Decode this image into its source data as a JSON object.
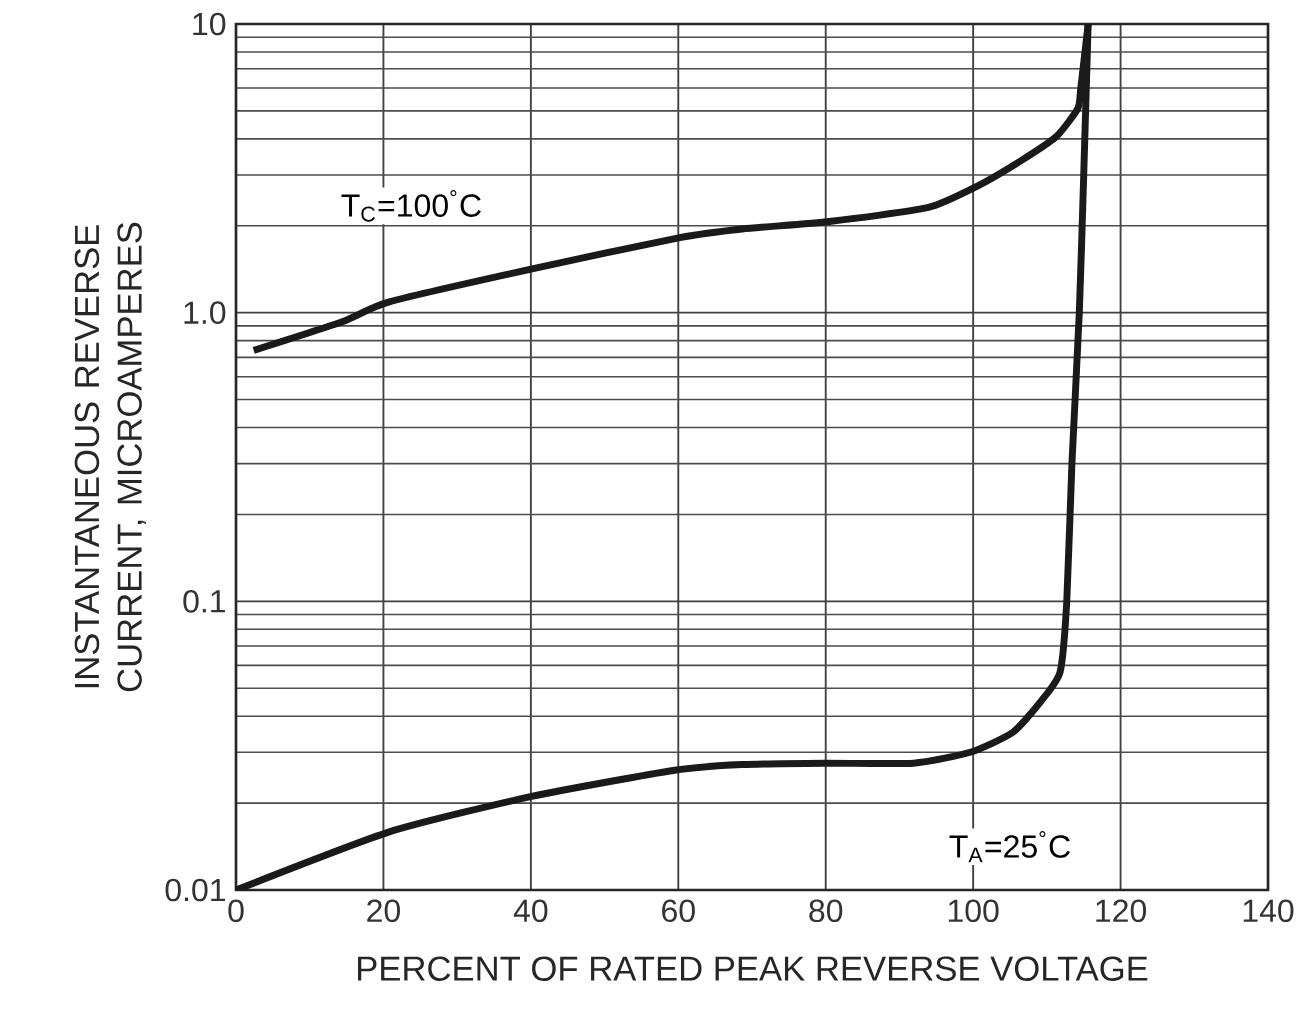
{
  "chart_data": {
    "type": "line",
    "xlabel": "PERCENT OF RATED PEAK REVERSE VOLTAGE",
    "ylabel": "INSTANTANEOUS REVERSE CURRENT, MICROAMPERES",
    "log": "y",
    "grid": true,
    "marker": "none",
    "line_style": "solid",
    "legend": false,
    "xlim": [
      0,
      140
    ],
    "xticks": [
      0,
      20,
      40,
      60,
      80,
      100,
      120,
      140
    ],
    "ylim": [
      0.01,
      10
    ],
    "yticks": [
      0.01,
      0.1,
      {
        "value": 1,
        "label": "1.0"
      },
      10
    ],
    "series": [
      {
        "color": "#1a1a1a",
        "x": [
          2.4,
          14.4,
          20.8,
          40.8,
          60.2,
          68.7,
          80.5,
          93.8,
          100.5,
          106.4,
          111.3,
          114.2,
          114.6,
          115.6
        ],
        "values": [
          0.74,
          0.93,
          1.09,
          1.43,
          1.82,
          1.95,
          2.07,
          2.31,
          2.74,
          3.35,
          4.08,
          5.1,
          6.0,
          10
        ]
      },
      {
        "color": "#1a1a1a",
        "x": [
          0,
          20.8,
          40.1,
          59.5,
          68.6,
          79.8,
          91.9,
          99.6,
          105.4,
          109.3,
          111.8,
          112.7,
          113.4,
          114.4,
          115.0,
          115.6
        ],
        "values": [
          0.01,
          0.0159,
          0.0211,
          0.026,
          0.0272,
          0.0275,
          0.0275,
          0.03,
          0.0352,
          0.0454,
          0.057,
          0.1,
          0.3,
          1.0,
          3.0,
          10
        ]
      }
    ],
    "annotations": [
      "T$_{C}$=100$^{°}$C",
      "T$_{A}$=25$^{°}$C"
    ]
  }
}
